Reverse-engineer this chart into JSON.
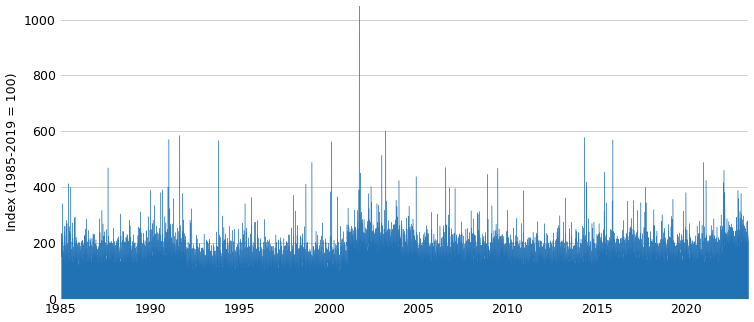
{
  "title": "",
  "ylabel": "Index (1985-2019 = 100)",
  "xlabel": "",
  "xlim": [
    1985.0,
    2023.5
  ],
  "ylim": [
    0,
    1050
  ],
  "yticks": [
    0,
    200,
    400,
    600,
    800,
    1000
  ],
  "xticks": [
    1985,
    1990,
    1995,
    2000,
    2005,
    2010,
    2015,
    2020
  ],
  "line_color": "#2171b5",
  "bg_color": "#ffffff",
  "grid_color": "#d0d0d0",
  "figsize": [
    7.54,
    3.22
  ],
  "dpi": 100
}
